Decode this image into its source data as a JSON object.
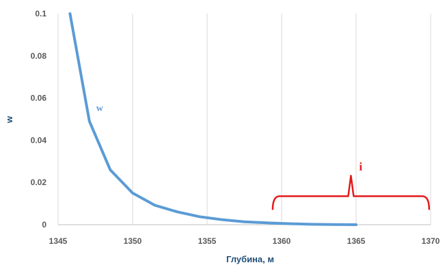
{
  "chart_data": {
    "type": "line",
    "xlabel": "Глубина, м",
    "ylabel": "w",
    "xlim": [
      1345,
      1370
    ],
    "ylim": [
      0,
      0.1
    ],
    "x_ticks": [
      "1345",
      "1350",
      "1355",
      "1360",
      "1365",
      "1370"
    ],
    "y_ticks": [
      "0",
      "0.02",
      "0.04",
      "0.06",
      "0.08",
      "0.1"
    ],
    "grid": "vertical",
    "series": [
      {
        "name": "w",
        "color": "#5b9bd5",
        "x": [
          1345.8,
          1347.1,
          1348.5,
          1350.0,
          1351.5,
          1353.0,
          1354.5,
          1356.0,
          1357.5,
          1359.0,
          1360.5,
          1362.0,
          1363.5,
          1365.0
        ],
        "y": [
          0.1,
          0.049,
          0.026,
          0.015,
          0.0092,
          0.0061,
          0.0038,
          0.0024,
          0.0014,
          0.0009,
          0.0005,
          0.0002,
          0.0001,
          0.0
        ]
      }
    ],
    "annotations": [
      {
        "label": "i",
        "type": "bracket",
        "x_range": [
          1359.4,
          1369.9
        ],
        "y": 0.0135,
        "color": "#e31a1c"
      }
    ]
  }
}
